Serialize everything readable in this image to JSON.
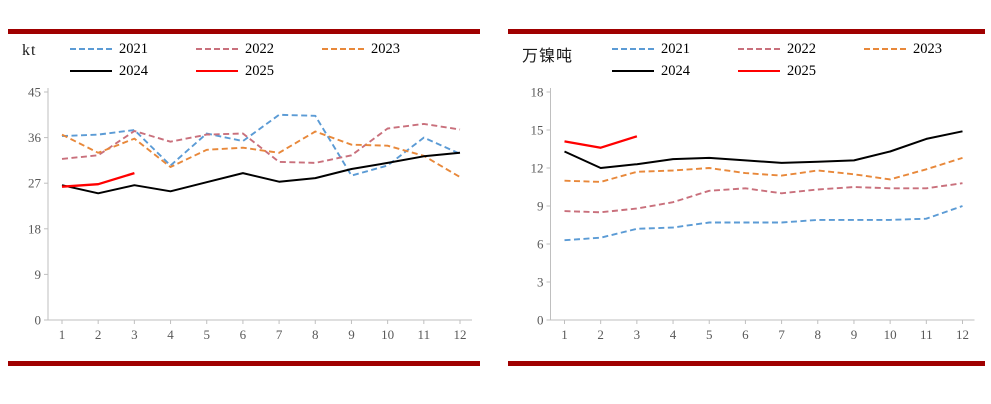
{
  "theme": {
    "background": "#ffffff",
    "rule_color": "#a00000",
    "axis_color": "#bfbfbf",
    "tick_label_color": "#595959"
  },
  "chart_data": [
    {
      "type": "line",
      "unit": "kt",
      "x": [
        1,
        2,
        3,
        4,
        5,
        6,
        7,
        8,
        9,
        10,
        11,
        12
      ],
      "xlabel": "",
      "ylabel": "kt",
      "ylim": [
        0,
        45
      ],
      "yticks": [
        0,
        9,
        18,
        27,
        36,
        45
      ],
      "grid": false,
      "legend_position": "top",
      "series": [
        {
          "name": "2021",
          "color": "#5b9bd5",
          "style": "dashed",
          "values": [
            36.3,
            36.6,
            37.5,
            30.5,
            36.8,
            35.3,
            40.5,
            40.3,
            28.5,
            30.5,
            36.0,
            32.8
          ]
        },
        {
          "name": "2022",
          "color": "#c9707c",
          "style": "dashed",
          "values": [
            31.8,
            32.5,
            37.3,
            35.2,
            36.6,
            36.8,
            31.2,
            31.0,
            32.5,
            37.8,
            38.7,
            37.6
          ]
        },
        {
          "name": "2023",
          "color": "#e8883a",
          "style": "dashed",
          "values": [
            36.6,
            33.0,
            35.8,
            30.2,
            33.6,
            34.0,
            33.0,
            37.2,
            34.6,
            34.4,
            32.4,
            28.2
          ]
        },
        {
          "name": "2024",
          "color": "#000000",
          "style": "solid",
          "values": [
            26.6,
            25.0,
            26.6,
            25.4,
            27.2,
            29.0,
            27.3,
            28.0,
            29.8,
            31.0,
            32.3,
            33.0
          ]
        },
        {
          "name": "2025",
          "color": "#ff0000",
          "style": "solid",
          "values": [
            26.3,
            26.8,
            29.0
          ]
        }
      ]
    },
    {
      "type": "line",
      "unit": "万镍吨",
      "x": [
        1,
        2,
        3,
        4,
        5,
        6,
        7,
        8,
        9,
        10,
        11,
        12
      ],
      "xlabel": "",
      "ylabel": "万镍吨",
      "ylim": [
        0,
        18
      ],
      "yticks": [
        0,
        3,
        6,
        9,
        12,
        15,
        18
      ],
      "grid": false,
      "legend_position": "top",
      "series": [
        {
          "name": "2021",
          "color": "#5b9bd5",
          "style": "dashed",
          "values": [
            6.3,
            6.5,
            7.2,
            7.3,
            7.7,
            7.7,
            7.7,
            7.9,
            7.9,
            7.9,
            8.0,
            9.0
          ]
        },
        {
          "name": "2022",
          "color": "#c9707c",
          "style": "dashed",
          "values": [
            8.6,
            8.5,
            8.8,
            9.3,
            10.2,
            10.4,
            10.0,
            10.3,
            10.5,
            10.4,
            10.4,
            10.8
          ]
        },
        {
          "name": "2023",
          "color": "#e8883a",
          "style": "dashed",
          "values": [
            11.0,
            10.9,
            11.7,
            11.8,
            12.0,
            11.6,
            11.4,
            11.8,
            11.5,
            11.1,
            11.9,
            12.8
          ]
        },
        {
          "name": "2024",
          "color": "#000000",
          "style": "solid",
          "values": [
            13.3,
            12.0,
            12.3,
            12.7,
            12.8,
            12.6,
            12.4,
            12.5,
            12.6,
            13.3,
            14.3,
            14.9
          ]
        },
        {
          "name": "2025",
          "color": "#ff0000",
          "style": "solid",
          "values": [
            14.1,
            13.6,
            14.5
          ]
        }
      ]
    }
  ]
}
